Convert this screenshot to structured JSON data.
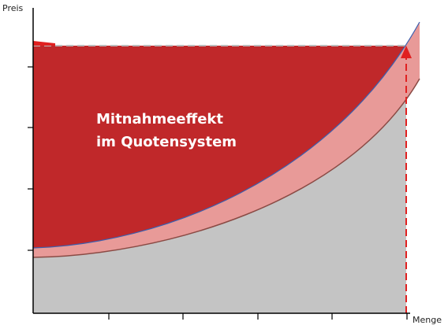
{
  "axes": {
    "y_label": "Preis",
    "x_label": "Menge"
  },
  "annotation": {
    "lines": [
      "Mitnahmeeffekt",
      "im Quotensystem"
    ]
  }
}
